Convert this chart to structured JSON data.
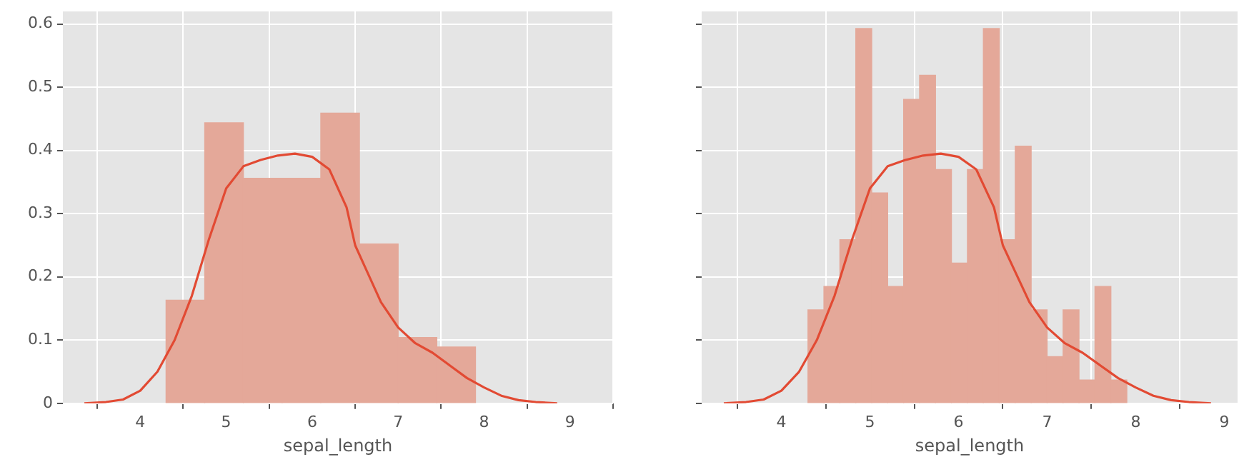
{
  "chart_data": [
    {
      "type": "histogram",
      "xlabel": "sepal_length",
      "bins": [
        4.3,
        4.75,
        5.2,
        5.65,
        6.1,
        6.55,
        7.0,
        7.45,
        7.9
      ],
      "values": [
        0.163,
        0.444,
        0.356,
        0.356,
        0.459,
        0.252,
        0.104,
        0.089
      ],
      "color": "#e4a899",
      "series": [
        {
          "type": "line",
          "color": "#e24a33",
          "x": [
            3.35,
            3.6,
            3.8,
            4.0,
            4.2,
            4.4,
            4.6,
            4.8,
            5.0,
            5.2,
            5.4,
            5.6,
            5.8,
            6.0,
            6.2,
            6.4,
            6.5,
            6.6,
            6.8,
            7.0,
            7.2,
            7.4,
            7.6,
            7.8,
            8.0,
            8.2,
            8.4,
            8.6,
            8.85
          ],
          "values": [
            0.0,
            0.002,
            0.006,
            0.02,
            0.05,
            0.1,
            0.17,
            0.26,
            0.34,
            0.375,
            0.385,
            0.392,
            0.395,
            0.39,
            0.37,
            0.31,
            0.25,
            0.22,
            0.16,
            0.12,
            0.095,
            0.08,
            0.06,
            0.04,
            0.025,
            0.012,
            0.005,
            0.002,
            0.0
          ]
        }
      ],
      "xlim": [
        3.1,
        9.5
      ],
      "xticks": [
        4,
        5,
        6,
        7,
        8,
        9
      ],
      "ylim": [
        0,
        0.62
      ],
      "yticks": [
        0,
        0.1,
        0.2,
        0.3,
        0.4,
        0.5,
        0.6
      ],
      "grid": true
    },
    {
      "type": "histogram",
      "xlabel": "sepal_length",
      "bins": [
        4.3,
        4.48,
        4.66,
        4.84,
        5.02,
        5.2,
        5.38,
        5.56,
        5.74,
        5.92,
        6.1,
        6.28,
        6.46,
        6.64,
        6.82,
        7.0,
        7.18,
        7.36,
        7.54,
        7.72,
        7.9
      ],
      "values": [
        0.148,
        0.185,
        0.259,
        0.593,
        0.333,
        0.185,
        0.481,
        0.519,
        0.37,
        0.222,
        0.37,
        0.593,
        0.259,
        0.407,
        0.148,
        0.074,
        0.148,
        0.037,
        0.185,
        0.037
      ],
      "color": "#e4a899",
      "series": [
        {
          "type": "line",
          "color": "#e24a33",
          "x": [
            3.35,
            3.6,
            3.8,
            4.0,
            4.2,
            4.4,
            4.6,
            4.8,
            5.0,
            5.2,
            5.4,
            5.6,
            5.8,
            6.0,
            6.2,
            6.4,
            6.5,
            6.6,
            6.8,
            7.0,
            7.2,
            7.4,
            7.6,
            7.8,
            8.0,
            8.2,
            8.4,
            8.6,
            8.85
          ],
          "values": [
            0.0,
            0.002,
            0.006,
            0.02,
            0.05,
            0.1,
            0.17,
            0.26,
            0.34,
            0.375,
            0.385,
            0.392,
            0.395,
            0.39,
            0.37,
            0.31,
            0.25,
            0.22,
            0.16,
            0.12,
            0.095,
            0.08,
            0.06,
            0.04,
            0.025,
            0.012,
            0.005,
            0.002,
            0.0
          ]
        }
      ],
      "xlim": [
        3.1,
        9.15
      ],
      "xticks": [
        4,
        5,
        6,
        7,
        8,
        9
      ],
      "ylim": [
        0,
        0.62
      ],
      "yticks": [
        0,
        0.1,
        0.2,
        0.3,
        0.4,
        0.5,
        0.6
      ],
      "grid": true,
      "tick_labels": "x"
    }
  ]
}
